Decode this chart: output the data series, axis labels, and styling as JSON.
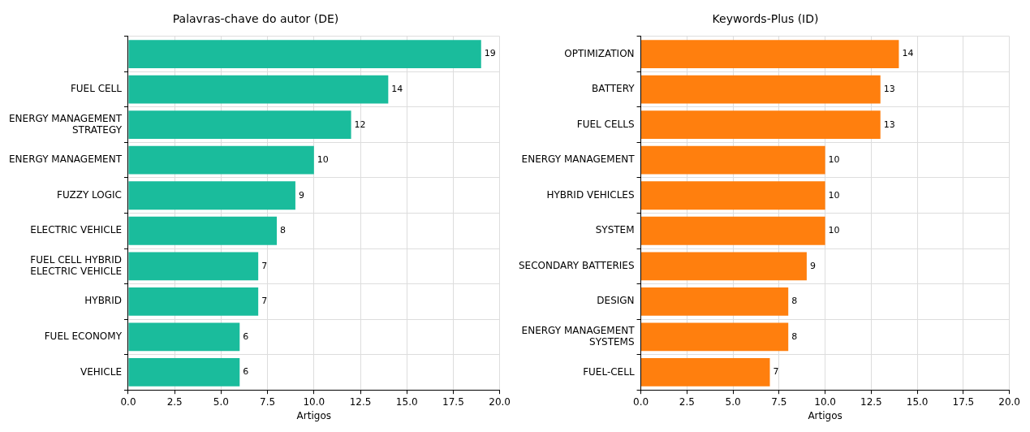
{
  "chart_data": [
    {
      "type": "bar",
      "orientation": "horizontal",
      "title": "Palavras-chave do autor (DE)",
      "xlabel": "Artigos",
      "categories": [
        null,
        "FUEL CELL",
        "ENERGY MANAGEMENT STRATEGY",
        "ENERGY MANAGEMENT",
        "FUZZY LOGIC",
        "ELECTRIC VEHICLE",
        "FUEL CELL HYBRID ELECTRIC VEHICLE",
        "HYBRID",
        "FUEL ECONOMY",
        "VEHICLE"
      ],
      "values": [
        19,
        14,
        12,
        10,
        9,
        8,
        7,
        7,
        6,
        6
      ],
      "color": "#1abc9c",
      "xlim": [
        0,
        20
      ],
      "xticks": [
        {
          "value": 0,
          "label": "0.0"
        },
        {
          "value": 2.5,
          "label": "2.5"
        },
        {
          "value": 5,
          "label": "5.0"
        },
        {
          "value": 7.5,
          "label": "7.5"
        },
        {
          "value": 10,
          "label": "10.0"
        },
        {
          "value": 12.5,
          "label": "12.5"
        },
        {
          "value": 15,
          "label": "15.0"
        },
        {
          "value": 17.5,
          "label": "17.5"
        },
        {
          "value": 20,
          "label": "20.0"
        }
      ],
      "grid": true,
      "data_labels": true
    },
    {
      "type": "bar",
      "orientation": "horizontal",
      "title": "Keywords-Plus (ID)",
      "xlabel": "Artigos",
      "categories": [
        "OPTIMIZATION",
        "BATTERY",
        "FUEL CELLS",
        "ENERGY MANAGEMENT",
        "HYBRID VEHICLES",
        "SYSTEM",
        "SECONDARY BATTERIES",
        "DESIGN",
        "ENERGY MANAGEMENT SYSTEMS",
        "FUEL-CELL"
      ],
      "values": [
        14,
        13,
        13,
        10,
        10,
        10,
        9,
        8,
        8,
        7
      ],
      "color": "#ff7f0e",
      "xlim": [
        0,
        20
      ],
      "xticks": [
        {
          "value": 0,
          "label": "0.0"
        },
        {
          "value": 2.5,
          "label": "2.5"
        },
        {
          "value": 5,
          "label": "5.0"
        },
        {
          "value": 7.5,
          "label": "7.5"
        },
        {
          "value": 10,
          "label": "10.0"
        },
        {
          "value": 12.5,
          "label": "12.5"
        },
        {
          "value": 15,
          "label": "15.0"
        },
        {
          "value": 17.5,
          "label": "17.5"
        },
        {
          "value": 20,
          "label": "20.0"
        }
      ],
      "grid": true,
      "data_labels": true
    }
  ]
}
